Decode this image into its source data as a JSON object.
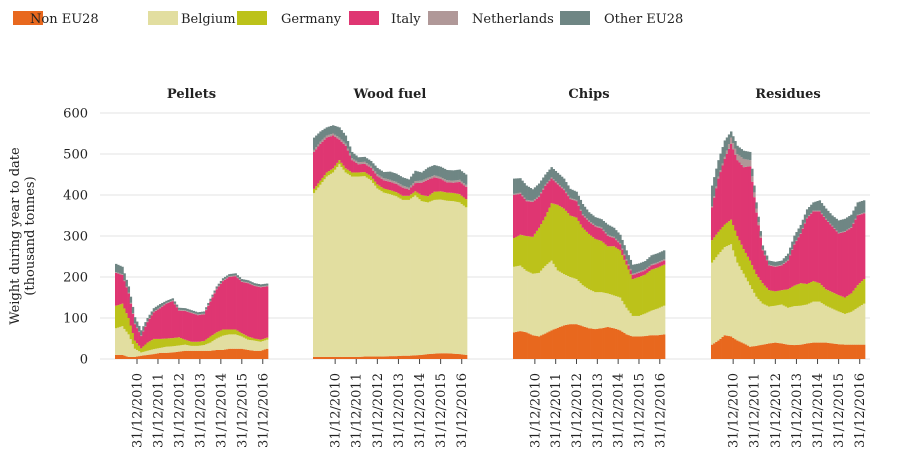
{
  "chart_data": {
    "type": "bar",
    "stacked": true,
    "ylabel": [
      "Weight during year to date",
      "(thousand tonnes)"
    ],
    "ylim": [
      0,
      600
    ],
    "yticks": [
      0,
      100,
      200,
      300,
      400,
      500,
      600
    ],
    "grid": true,
    "legend_position": "top-left",
    "x_tick_labels": [
      "31/12/2010",
      "31/12/2011",
      "31/12/2012",
      "31/12/2013",
      "31/12/2014",
      "31/12/2015",
      "31/12/2016"
    ],
    "series": [
      {
        "key": "non_eu28",
        "name": "Non EU28",
        "color": "#e8681e"
      },
      {
        "key": "belgium",
        "name": "Belgium",
        "color": "#e2dea0"
      },
      {
        "key": "germany",
        "name": "Germany",
        "color": "#bcc21a"
      },
      {
        "key": "italy",
        "name": "Italy",
        "color": "#df3672"
      },
      {
        "key": "netherlands",
        "name": "Netherlands",
        "color": "#b09898"
      },
      {
        "key": "other_eu28",
        "name": "Other EU28",
        "color": "#6f8684"
      }
    ],
    "panels": [
      {
        "title": "Pellets",
        "anchors": {
          "t": [
            0,
            3,
            6,
            9,
            12,
            15,
            18,
            21,
            24,
            27,
            30,
            33,
            36,
            39,
            42,
            45,
            48,
            51,
            54,
            57,
            60,
            63,
            66,
            69,
            72
          ],
          "non_eu28": [
            10,
            10,
            5,
            5,
            8,
            10,
            12,
            15,
            15,
            16,
            18,
            20,
            20,
            20,
            20,
            20,
            22,
            22,
            25,
            25,
            25,
            22,
            20,
            20,
            25
          ],
          "belgium": [
            65,
            70,
            55,
            20,
            8,
            10,
            12,
            12,
            15,
            15,
            15,
            15,
            12,
            12,
            14,
            20,
            28,
            35,
            35,
            35,
            30,
            25,
            25,
            22,
            22
          ],
          "germany": [
            55,
            55,
            40,
            20,
            10,
            20,
            25,
            22,
            20,
            20,
            20,
            12,
            10,
            10,
            10,
            15,
            15,
            15,
            12,
            12,
            8,
            8,
            5,
            5,
            5
          ],
          "italy": [
            80,
            70,
            60,
            40,
            30,
            50,
            65,
            75,
            85,
            90,
            65,
            70,
            70,
            65,
            65,
            85,
            105,
            118,
            128,
            130,
            125,
            130,
            128,
            128,
            125
          ],
          "netherlands": [
            2,
            2,
            2,
            2,
            2,
            2,
            2,
            2,
            2,
            2,
            2,
            2,
            2,
            2,
            2,
            2,
            2,
            2,
            2,
            2,
            2,
            2,
            2,
            2,
            2
          ],
          "other_eu28": [
            20,
            18,
            15,
            15,
            12,
            8,
            8,
            8,
            5,
            5,
            5,
            5,
            5,
            5,
            5,
            5,
            5,
            5,
            5,
            5,
            5,
            5,
            5,
            5,
            5
          ]
        }
      },
      {
        "title": "Wood fuel",
        "anchors": {
          "t": [
            0,
            3,
            6,
            9,
            12,
            15,
            18,
            21,
            24,
            27,
            30,
            33,
            36,
            39,
            42,
            45,
            48,
            51,
            54,
            57,
            60,
            63,
            66,
            69,
            72
          ],
          "non_eu28": [
            5,
            5,
            5,
            5,
            5,
            5,
            5,
            5,
            6,
            6,
            6,
            6,
            7,
            7,
            8,
            8,
            9,
            10,
            12,
            13,
            14,
            14,
            13,
            12,
            10
          ],
          "belgium": [
            400,
            420,
            440,
            450,
            470,
            450,
            440,
            440,
            440,
            430,
            410,
            400,
            395,
            390,
            380,
            380,
            390,
            375,
            370,
            375,
            375,
            372,
            372,
            370,
            360
          ],
          "germany": [
            10,
            10,
            10,
            10,
            10,
            10,
            10,
            10,
            10,
            10,
            10,
            10,
            10,
            10,
            10,
            10,
            10,
            15,
            15,
            20,
            20,
            20,
            20,
            20,
            20
          ],
          "italy": [
            90,
            90,
            85,
            80,
            50,
            55,
            30,
            20,
            20,
            20,
            20,
            20,
            20,
            20,
            20,
            15,
            20,
            30,
            40,
            35,
            30,
            25,
            25,
            30,
            30
          ],
          "netherlands": [
            5,
            5,
            5,
            5,
            5,
            5,
            5,
            5,
            5,
            5,
            5,
            5,
            5,
            5,
            5,
            5,
            5,
            5,
            5,
            5,
            5,
            5,
            5,
            5,
            5
          ],
          "other_eu28": [
            30,
            25,
            20,
            20,
            25,
            20,
            15,
            12,
            12,
            12,
            15,
            15,
            20,
            20,
            20,
            20,
            25,
            20,
            25,
            25,
            25,
            25,
            25,
            25,
            25
          ]
        }
      },
      {
        "title": "Chips",
        "anchors": {
          "t": [
            0,
            3,
            6,
            9,
            12,
            15,
            18,
            21,
            24,
            27,
            30,
            33,
            36,
            39,
            42,
            45,
            48,
            51,
            54,
            57,
            60,
            63,
            66,
            69,
            72
          ],
          "non_eu28": [
            65,
            68,
            65,
            58,
            55,
            62,
            70,
            76,
            82,
            85,
            85,
            80,
            75,
            73,
            75,
            78,
            75,
            70,
            60,
            55,
            55,
            56,
            58,
            58,
            60
          ],
          "belgium": [
            160,
            160,
            150,
            150,
            155,
            165,
            170,
            140,
            125,
            115,
            110,
            100,
            95,
            90,
            88,
            82,
            80,
            80,
            65,
            50,
            50,
            55,
            60,
            65,
            70
          ],
          "germany": [
            70,
            75,
            85,
            90,
            110,
            120,
            140,
            160,
            160,
            150,
            150,
            140,
            135,
            130,
            125,
            115,
            120,
            115,
            105,
            90,
            95,
            95,
            100,
            100,
            100
          ],
          "italy": [
            105,
            100,
            85,
            85,
            75,
            75,
            60,
            50,
            45,
            40,
            40,
            30,
            30,
            30,
            30,
            25,
            20,
            15,
            10,
            10,
            10,
            10,
            10,
            10,
            10
          ],
          "netherlands": [
            3,
            3,
            3,
            3,
            3,
            3,
            3,
            3,
            3,
            3,
            3,
            3,
            3,
            3,
            3,
            3,
            3,
            3,
            3,
            3,
            3,
            3,
            3,
            3,
            3
          ],
          "other_eu28": [
            37,
            35,
            35,
            28,
            30,
            25,
            25,
            25,
            25,
            22,
            20,
            25,
            20,
            20,
            20,
            25,
            22,
            20,
            22,
            22,
            20,
            20,
            22,
            22,
            22
          ]
        }
      },
      {
        "title": "Residues",
        "anchors": {
          "t": [
            0,
            3,
            6,
            9,
            12,
            15,
            18,
            21,
            24,
            27,
            30,
            33,
            36,
            39,
            42,
            45,
            48,
            51,
            54,
            57,
            60,
            63,
            66,
            69,
            72
          ],
          "non_eu28": [
            35,
            45,
            58,
            55,
            45,
            38,
            30,
            32,
            35,
            38,
            40,
            38,
            35,
            34,
            35,
            38,
            40,
            40,
            40,
            38,
            36,
            35,
            35,
            35,
            35
          ],
          "belgium": [
            200,
            210,
            215,
            225,
            190,
            170,
            150,
            120,
            100,
            90,
            90,
            95,
            90,
            95,
            95,
            95,
            100,
            100,
            90,
            85,
            80,
            75,
            80,
            90,
            100
          ],
          "germany": [
            55,
            55,
            55,
            60,
            65,
            60,
            60,
            55,
            50,
            40,
            35,
            35,
            45,
            50,
            55,
            50,
            50,
            45,
            40,
            40,
            40,
            40,
            45,
            55,
            60
          ],
          "italy": [
            80,
            130,
            160,
            185,
            185,
            200,
            230,
            150,
            80,
            60,
            60,
            60,
            70,
            100,
            120,
            160,
            170,
            175,
            170,
            160,
            150,
            160,
            160,
            170,
            160
          ],
          "netherlands": [
            3,
            5,
            5,
            15,
            15,
            20,
            15,
            10,
            2,
            2,
            2,
            2,
            2,
            2,
            2,
            2,
            2,
            2,
            2,
            2,
            2,
            2,
            2,
            2,
            2
          ],
          "other_eu28": [
            50,
            40,
            40,
            15,
            20,
            20,
            20,
            15,
            10,
            10,
            10,
            10,
            15,
            20,
            20,
            20,
            20,
            25,
            25,
            25,
            30,
            30,
            30,
            30,
            30
          ]
        }
      }
    ]
  }
}
